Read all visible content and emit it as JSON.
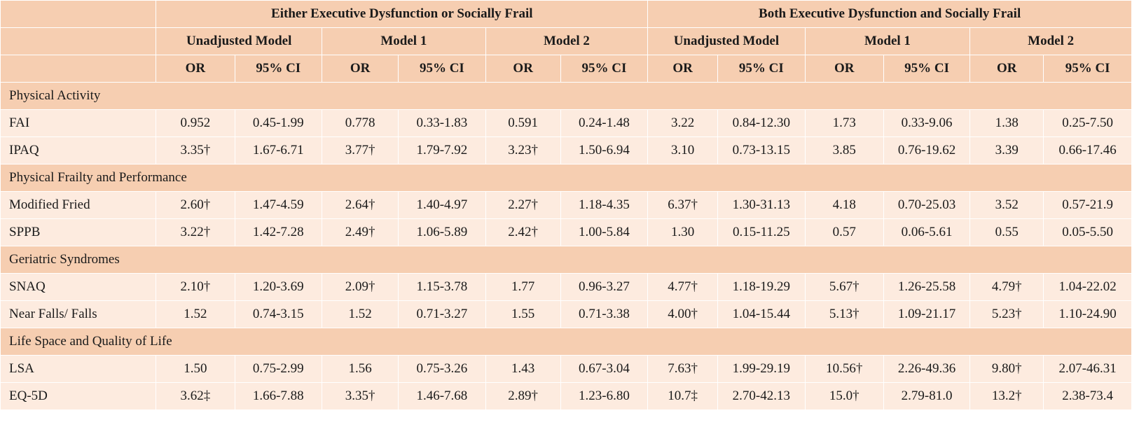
{
  "header": {
    "group_either": "Either Executive Dysfunction or Socially Frail",
    "group_both": "Both Executive Dysfunction and Socially Frail",
    "model_unadjusted": "Unadjusted Model",
    "model_1": "Model 1",
    "model_2": "Model 2",
    "col_or": "OR",
    "col_ci": "95% CI"
  },
  "sections": [
    {
      "title": "Physical Activity",
      "rows": [
        {
          "label": "FAI",
          "values": [
            "0.952",
            "0.45-1.99",
            "0.778",
            "0.33-1.83",
            "0.591",
            "0.24-1.48",
            "3.22",
            "0.84-12.30",
            "1.73",
            "0.33-9.06",
            "1.38",
            "0.25-7.50"
          ]
        },
        {
          "label": "IPAQ",
          "values": [
            "3.35†",
            "1.67-6.71",
            "3.77†",
            "1.79-7.92",
            "3.23†",
            "1.50-6.94",
            "3.10",
            "0.73-13.15",
            "3.85",
            "0.76-19.62",
            "3.39",
            "0.66-17.46"
          ]
        }
      ]
    },
    {
      "title": "Physical Frailty and Performance",
      "rows": [
        {
          "label": "Modified Fried",
          "values": [
            "2.60†",
            "1.47-4.59",
            "2.64†",
            "1.40-4.97",
            "2.27†",
            "1.18-4.35",
            "6.37†",
            "1.30-31.13",
            "4.18",
            "0.70-25.03",
            "3.52",
            "0.57-21.9"
          ]
        },
        {
          "label": "SPPB",
          "values": [
            "3.22†",
            "1.42-7.28",
            "2.49†",
            "1.06-5.89",
            "2.42†",
            "1.00-5.84",
            "1.30",
            "0.15-11.25",
            "0.57",
            "0.06-5.61",
            "0.55",
            "0.05-5.50"
          ]
        }
      ]
    },
    {
      "title": "Geriatric Syndromes",
      "rows": [
        {
          "label": "SNAQ",
          "values": [
            "2.10†",
            "1.20-3.69",
            "2.09†",
            "1.15-3.78",
            "1.77",
            "0.96-3.27",
            "4.77†",
            "1.18-19.29",
            "5.67†",
            "1.26-25.58",
            "4.79†",
            "1.04-22.02"
          ]
        },
        {
          "label": "Near Falls/ Falls",
          "values": [
            "1.52",
            "0.74-3.15",
            "1.52",
            "0.71-3.27",
            "1.55",
            "0.71-3.38",
            "4.00†",
            "1.04-15.44",
            "5.13†",
            "1.09-21.17",
            "5.23†",
            "1.10-24.90"
          ]
        }
      ]
    },
    {
      "title": "Life Space and Quality of Life",
      "rows": [
        {
          "label": "LSA",
          "values": [
            "1.50",
            "0.75-2.99",
            "1.56",
            "0.75-3.26",
            "1.43",
            "0.67-3.04",
            "7.63†",
            "1.99-29.19",
            "10.56†",
            "2.26-49.36",
            "9.80†",
            "2.07-46.31"
          ]
        },
        {
          "label": "EQ-5D",
          "values": [
            "3.62‡",
            "1.66-7.88",
            "3.35†",
            "1.46-7.68",
            "2.89†",
            "1.23-6.80",
            "10.7‡",
            "2.70-42.13",
            "15.0†",
            "2.79-81.0",
            "13.2†",
            "2.38-73.4"
          ]
        }
      ]
    }
  ]
}
